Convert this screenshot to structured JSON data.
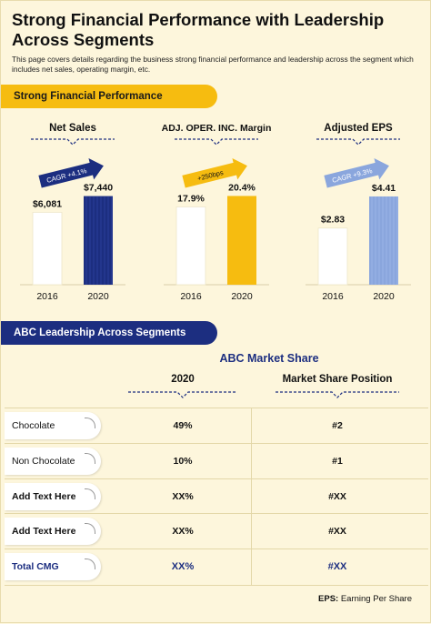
{
  "title": "Strong Financial Performance with Leadership Across Segments",
  "subtitle": "This page covers details regarding the business strong financial performance and leadership across the segment which includes net sales, operating margin, etc.",
  "banner_performance": "Strong Financial Performance",
  "banner_leadership": "ABC Leadership Across Segments",
  "colors": {
    "yellow": "#f6bc10",
    "navy": "#1c2e80",
    "light_blue": "#8aa6dd",
    "white": "#ffffff"
  },
  "chart_data": [
    {
      "type": "bar",
      "title": "Net Sales",
      "categories": [
        "2016",
        "2020"
      ],
      "values": [
        6081,
        7440
      ],
      "data_labels": [
        "$6,081",
        "$7,440"
      ],
      "annotation": "CAGR +4.1%",
      "bar_colors": [
        "#ffffff",
        "#1c2e80"
      ],
      "ylim": [
        0,
        8400
      ]
    },
    {
      "type": "bar",
      "title": "ADJ. OPER. INC. Margin",
      "categories": [
        "2016",
        "2020"
      ],
      "values": [
        17.9,
        20.4
      ],
      "data_labels": [
        "17.9%",
        "20.4%"
      ],
      "annotation": "+250bps",
      "bar_colors": [
        "#ffffff",
        "#f6bc10"
      ],
      "ylim": [
        0,
        23
      ]
    },
    {
      "type": "bar",
      "title": "Adjusted EPS",
      "categories": [
        "2016",
        "2020"
      ],
      "values": [
        2.83,
        4.41
      ],
      "data_labels": [
        "$2.83",
        "$4.41"
      ],
      "annotation": "CAGR +9.3%",
      "bar_colors": [
        "#ffffff",
        "#8aa6dd"
      ],
      "ylim": [
        0,
        5
      ]
    },
    {
      "type": "table",
      "title": "ABC Market Share",
      "columns": [
        "2020",
        "Market Share Position"
      ],
      "rows": [
        {
          "label": "Chocolate",
          "share": "49%",
          "position": "#2"
        },
        {
          "label": "Non Chocolate",
          "share": "10%",
          "position": "#1"
        },
        {
          "label": "Add Text Here",
          "share": "XX%",
          "position": "#XX"
        },
        {
          "label": "Add Text Here",
          "share": "XX%",
          "position": "#XX"
        },
        {
          "label": "Total CMG",
          "share": "XX%",
          "position": "#XX"
        }
      ]
    }
  ],
  "footnote": {
    "abbr": "EPS:",
    "text": " Earning Per Share"
  }
}
